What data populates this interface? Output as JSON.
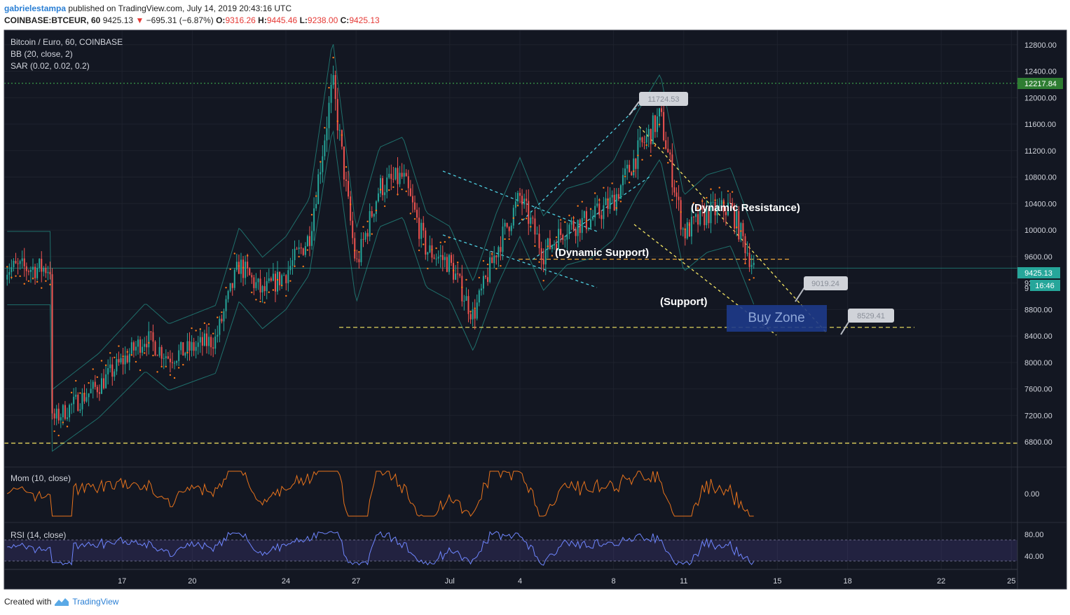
{
  "header": {
    "user": "gabrielestampa",
    "published": "published on TradingView.com, July 14, 2019 20:43:16 UTC",
    "symbol": "COINBASE:BTCEUR, 60",
    "last": "9425.13",
    "change": "−695.31 (−6.87%)",
    "o_label": "O:",
    "o": "9316.26",
    "h_label": "H:",
    "h": "9445.46",
    "l_label": "L:",
    "l": "9238.00",
    "c_label": "C:",
    "c": "9425.13"
  },
  "legend": {
    "title": "Bitcoin / Euro, 60, COINBASE",
    "bb": "BB (20, close, 2)",
    "sar": "SAR (0.02, 0.02, 0.2)",
    "mom": "Mom (10, close)",
    "rsi": "RSI (14, close)"
  },
  "annotations": {
    "dynamic_resistance": "(Dynamic Resistance)",
    "dynamic_support": "(Dynamic Support)",
    "support": "(Support)",
    "buy_zone": "Buy Zone",
    "callout_high": "11724.53",
    "callout_mid": "9019.24",
    "callout_low": "8529.41"
  },
  "price_labels": {
    "high_line": "12217.84",
    "current": "9425.13",
    "countdown": "16:46",
    "partial": "9"
  },
  "footer": {
    "created_with": "Created with",
    "brand": "TradingView"
  },
  "colors": {
    "background": "#131722",
    "candle_up": "#26a69a",
    "candle_down": "#ef5350",
    "sar": "#ff7a1a",
    "bb": "#1f6f6b",
    "trend_cyan": "#4dd0e1",
    "trend_yellow": "#f5e663",
    "mom": "#e8731c",
    "rsi": "#6a5acd",
    "current_tag": "#26a69a",
    "high_tag": "#2e7d32",
    "buy_zone": "#1e3a8a"
  },
  "chart_data": [
    {
      "type": "candlestick",
      "title": "Bitcoin / Euro, 60, COINBASE",
      "x_ticks": [
        "17",
        "20",
        "24",
        "27",
        "Jul",
        "4",
        "8",
        "11",
        "15",
        "18",
        "22",
        "25"
      ],
      "y_ticks": [
        "6800.00",
        "7200.00",
        "7600.00",
        "8000.00",
        "8400.00",
        "8800.00",
        "9200.00",
        "9600.00",
        "10000.00",
        "10400.00",
        "10800.00",
        "11200.00",
        "11600.00",
        "12000.00",
        "12400.00",
        "12800.00"
      ],
      "ylim": [
        6420,
        13020
      ],
      "price_path": [
        {
          "x": "June 14",
          "y": 7120
        },
        {
          "x": "June 16",
          "y": 7650
        },
        {
          "x": "June 18",
          "y": 8380
        },
        {
          "x": "June 19",
          "y": 8080
        },
        {
          "x": "June 21",
          "y": 8350
        },
        {
          "x": "June 22",
          "y": 9480
        },
        {
          "x": "June 23",
          "y": 9050
        },
        {
          "x": "June 24",
          "y": 9350
        },
        {
          "x": "June 25",
          "y": 9900
        },
        {
          "x": "June 26",
          "y": 12217
        },
        {
          "x": "June 27",
          "y": 9450
        },
        {
          "x": "June 28",
          "y": 10650
        },
        {
          "x": "June 29",
          "y": 10800
        },
        {
          "x": "June 30",
          "y": 9700
        },
        {
          "x": "July 1",
          "y": 9500
        },
        {
          "x": "July 2",
          "y": 8700
        },
        {
          "x": "July 3",
          "y": 9700
        },
        {
          "x": "July 4",
          "y": 10500
        },
        {
          "x": "July 5",
          "y": 9650
        },
        {
          "x": "July 6",
          "y": 10050
        },
        {
          "x": "July 7",
          "y": 10150
        },
        {
          "x": "July 8",
          "y": 10450
        },
        {
          "x": "July 9",
          "y": 11150
        },
        {
          "x": "July 10",
          "y": 11724
        },
        {
          "x": "July 11",
          "y": 9950
        },
        {
          "x": "July 12",
          "y": 10250
        },
        {
          "x": "July 13",
          "y": 10350
        },
        {
          "x": "July 14",
          "y": 9425
        }
      ],
      "horizontal_levels": [
        12217.84,
        9560,
        8530,
        6780
      ],
      "current_price": 9425.13,
      "buy_zone": [
        8529.41,
        9019.24
      ]
    },
    {
      "type": "line",
      "title": "Mom (10, close)",
      "y_ticks": [
        "0.00"
      ]
    },
    {
      "type": "line",
      "title": "RSI (14, close)",
      "y_ticks": [
        "80.00",
        "40.00"
      ],
      "band": [
        30,
        70
      ]
    }
  ]
}
